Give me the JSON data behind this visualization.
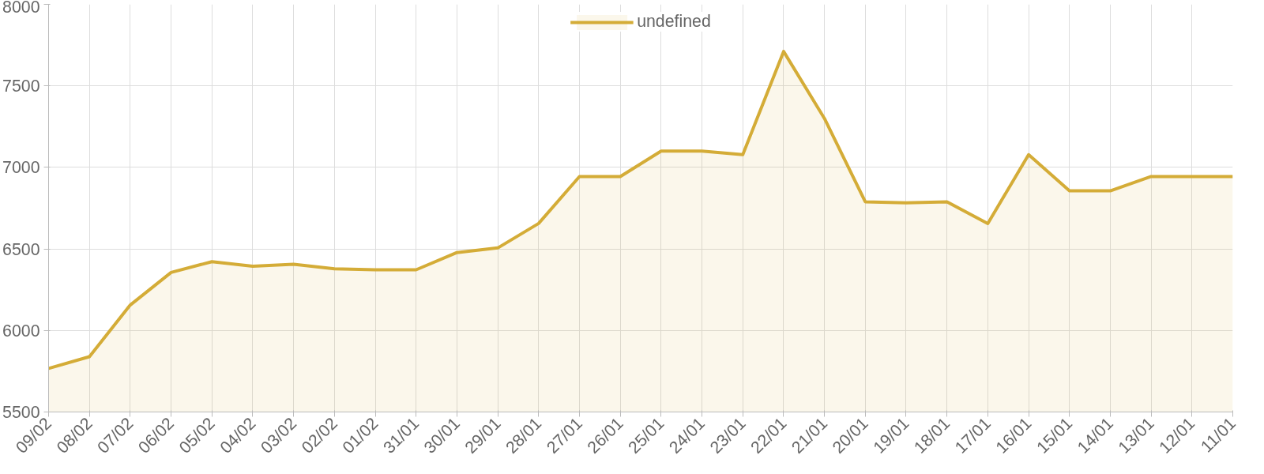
{
  "chart_data": {
    "type": "area",
    "categories": [
      "09/02",
      "08/02",
      "07/02",
      "06/02",
      "05/02",
      "04/02",
      "03/02",
      "02/02",
      "01/02",
      "31/01",
      "30/01",
      "29/01",
      "28/01",
      "27/01",
      "26/01",
      "25/01",
      "24/01",
      "23/01",
      "22/01",
      "21/01",
      "20/01",
      "19/01",
      "18/01",
      "17/01",
      "16/01",
      "15/01",
      "14/01",
      "13/01",
      "12/01",
      "11/01"
    ],
    "series": [
      {
        "name": "undefined",
        "color": "#d4ac37",
        "values": [
          5767,
          5839,
          6156,
          6356,
          6422,
          6394,
          6406,
          6378,
          6372,
          6372,
          6478,
          6506,
          6656,
          6944,
          6944,
          7100,
          7100,
          7078,
          7711,
          7300,
          6789,
          6783,
          6789,
          6656,
          7078,
          6856,
          6856,
          6944,
          6944,
          6944
        ]
      }
    ],
    "ylim": [
      5500,
      8000
    ],
    "yticks": [
      5500,
      6000,
      6500,
      7000,
      7500,
      8000
    ],
    "grid": true,
    "legend": "top"
  }
}
